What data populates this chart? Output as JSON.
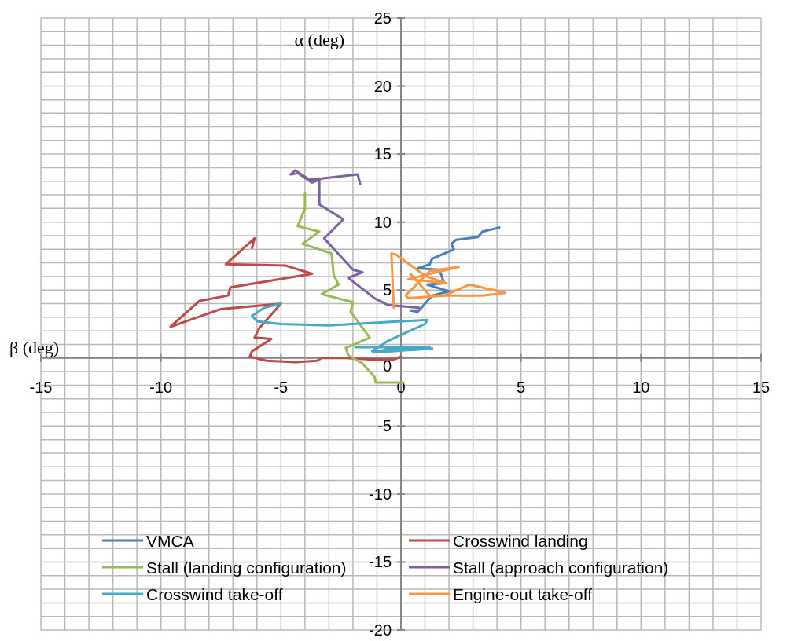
{
  "chart_data": {
    "type": "line",
    "xlabel": "β (deg)",
    "ylabel": "α (deg)",
    "xlim": [
      -15,
      15
    ],
    "ylim": [
      -20,
      25
    ],
    "xticks": [
      -15,
      -10,
      -5,
      0,
      5,
      10,
      15
    ],
    "yticks": [
      -20,
      -15,
      -10,
      -5,
      0,
      5,
      10,
      15,
      20,
      25
    ],
    "grid": true,
    "legend": "bottom",
    "marker": "none",
    "line_style": "solid",
    "series": [
      {
        "name": "VMCA",
        "color": "#4a7ebb",
        "x": [
          4.1,
          3.4,
          3.2,
          2.3,
          2.1,
          2.2,
          1.3,
          1.2,
          0.7,
          1.6,
          1.8,
          1.1,
          2.0,
          1.3,
          1.0,
          0.75,
          0.4,
          0.7
        ],
        "values": [
          9.6,
          9.3,
          8.9,
          8.7,
          8.4,
          8.0,
          7.3,
          6.9,
          6.6,
          6.5,
          5.5,
          5.4,
          4.9,
          4.6,
          4.0,
          3.5,
          3.5,
          3.4
        ]
      },
      {
        "name": "Crosswind landing",
        "color": "#be4b48",
        "x": [
          0,
          -0.3,
          -1.3,
          -2.3,
          -3.3,
          -3.5,
          -4.4,
          -5.6,
          -6.3,
          -6.2,
          -5.4,
          -6.1,
          -5.9,
          -5.0,
          -7.5,
          -9.6,
          -8.4,
          -7.2,
          -7.1,
          -3.7,
          -4.8,
          -7.3,
          -6.1,
          -6.2
        ],
        "values": [
          0.1,
          -0.1,
          -0.1,
          0,
          0,
          -0.2,
          -0.3,
          -0.2,
          0.1,
          0.5,
          1.4,
          1.5,
          2.2,
          4.0,
          3.6,
          2.3,
          4.2,
          4.6,
          5.2,
          6.2,
          6.8,
          6.9,
          8.8,
          8.1
        ]
      },
      {
        "name": "Stall (landing configuration)",
        "color": "#98b954",
        "x": [
          -4.0,
          -4.0,
          -4.3,
          -3.4,
          -4.1,
          -2.9,
          -2.85,
          -2.8,
          -2.6,
          -3.3,
          -2.0,
          -2.1,
          -1.3,
          -2.3,
          -2.2,
          -1.6,
          -1.1,
          -1.05,
          0.1
        ],
        "values": [
          12.1,
          11.0,
          9.7,
          9.3,
          8.4,
          7.7,
          7.0,
          6.1,
          5.4,
          4.7,
          4.1,
          3.4,
          1.5,
          0.75,
          0.2,
          -0.4,
          -1.4,
          -1.8,
          -1.8
        ]
      },
      {
        "name": "Stall (approach configuration)",
        "color": "#7d60a0",
        "x": [
          -1.7,
          -1.8,
          -3.3,
          -3.7,
          -4.3,
          -4.6,
          -4.4,
          -3.8,
          -3.4,
          -3.4,
          -2.4,
          -3.2,
          -2.0,
          -1.6,
          -2.2,
          -1.1,
          -0.55,
          0.75
        ],
        "values": [
          12.8,
          13.5,
          13.2,
          12.9,
          13.6,
          13.5,
          13.8,
          13.1,
          13.2,
          11.3,
          10.2,
          8.8,
          6.5,
          6.3,
          5.9,
          4.4,
          3.9,
          3.7
        ]
      },
      {
        "name": "Crosswind take-off",
        "color": "#46aac5",
        "x": [
          -5.0,
          -5.7,
          -6.2,
          -6.0,
          -5.0,
          -3.0,
          -1.0,
          1.1,
          1.0,
          -0.5,
          -1.2,
          0.5,
          1.3,
          -1.1,
          -0.5,
          1.2,
          -1.9
        ],
        "values": [
          4.0,
          3.7,
          3.1,
          2.7,
          2.5,
          2.4,
          2.6,
          2.8,
          2.5,
          1.3,
          0.5,
          0.6,
          0.7,
          0.4,
          0.7,
          0.8,
          0.8
        ]
      },
      {
        "name": "Engine-out take-off",
        "color": "#f79646",
        "x": [
          -0.3,
          -0.4,
          -0.2,
          1.05,
          1.9,
          0.3,
          2.4,
          1.2,
          0.2,
          0.3,
          1.8,
          2.85,
          4.35,
          3.4,
          1.2,
          0.4
        ],
        "values": [
          3.7,
          7.7,
          7.6,
          6.0,
          5.5,
          5.8,
          6.7,
          6.4,
          4.6,
          4.4,
          4.6,
          5.4,
          4.8,
          4.6,
          4.6,
          6.2
        ]
      }
    ]
  }
}
